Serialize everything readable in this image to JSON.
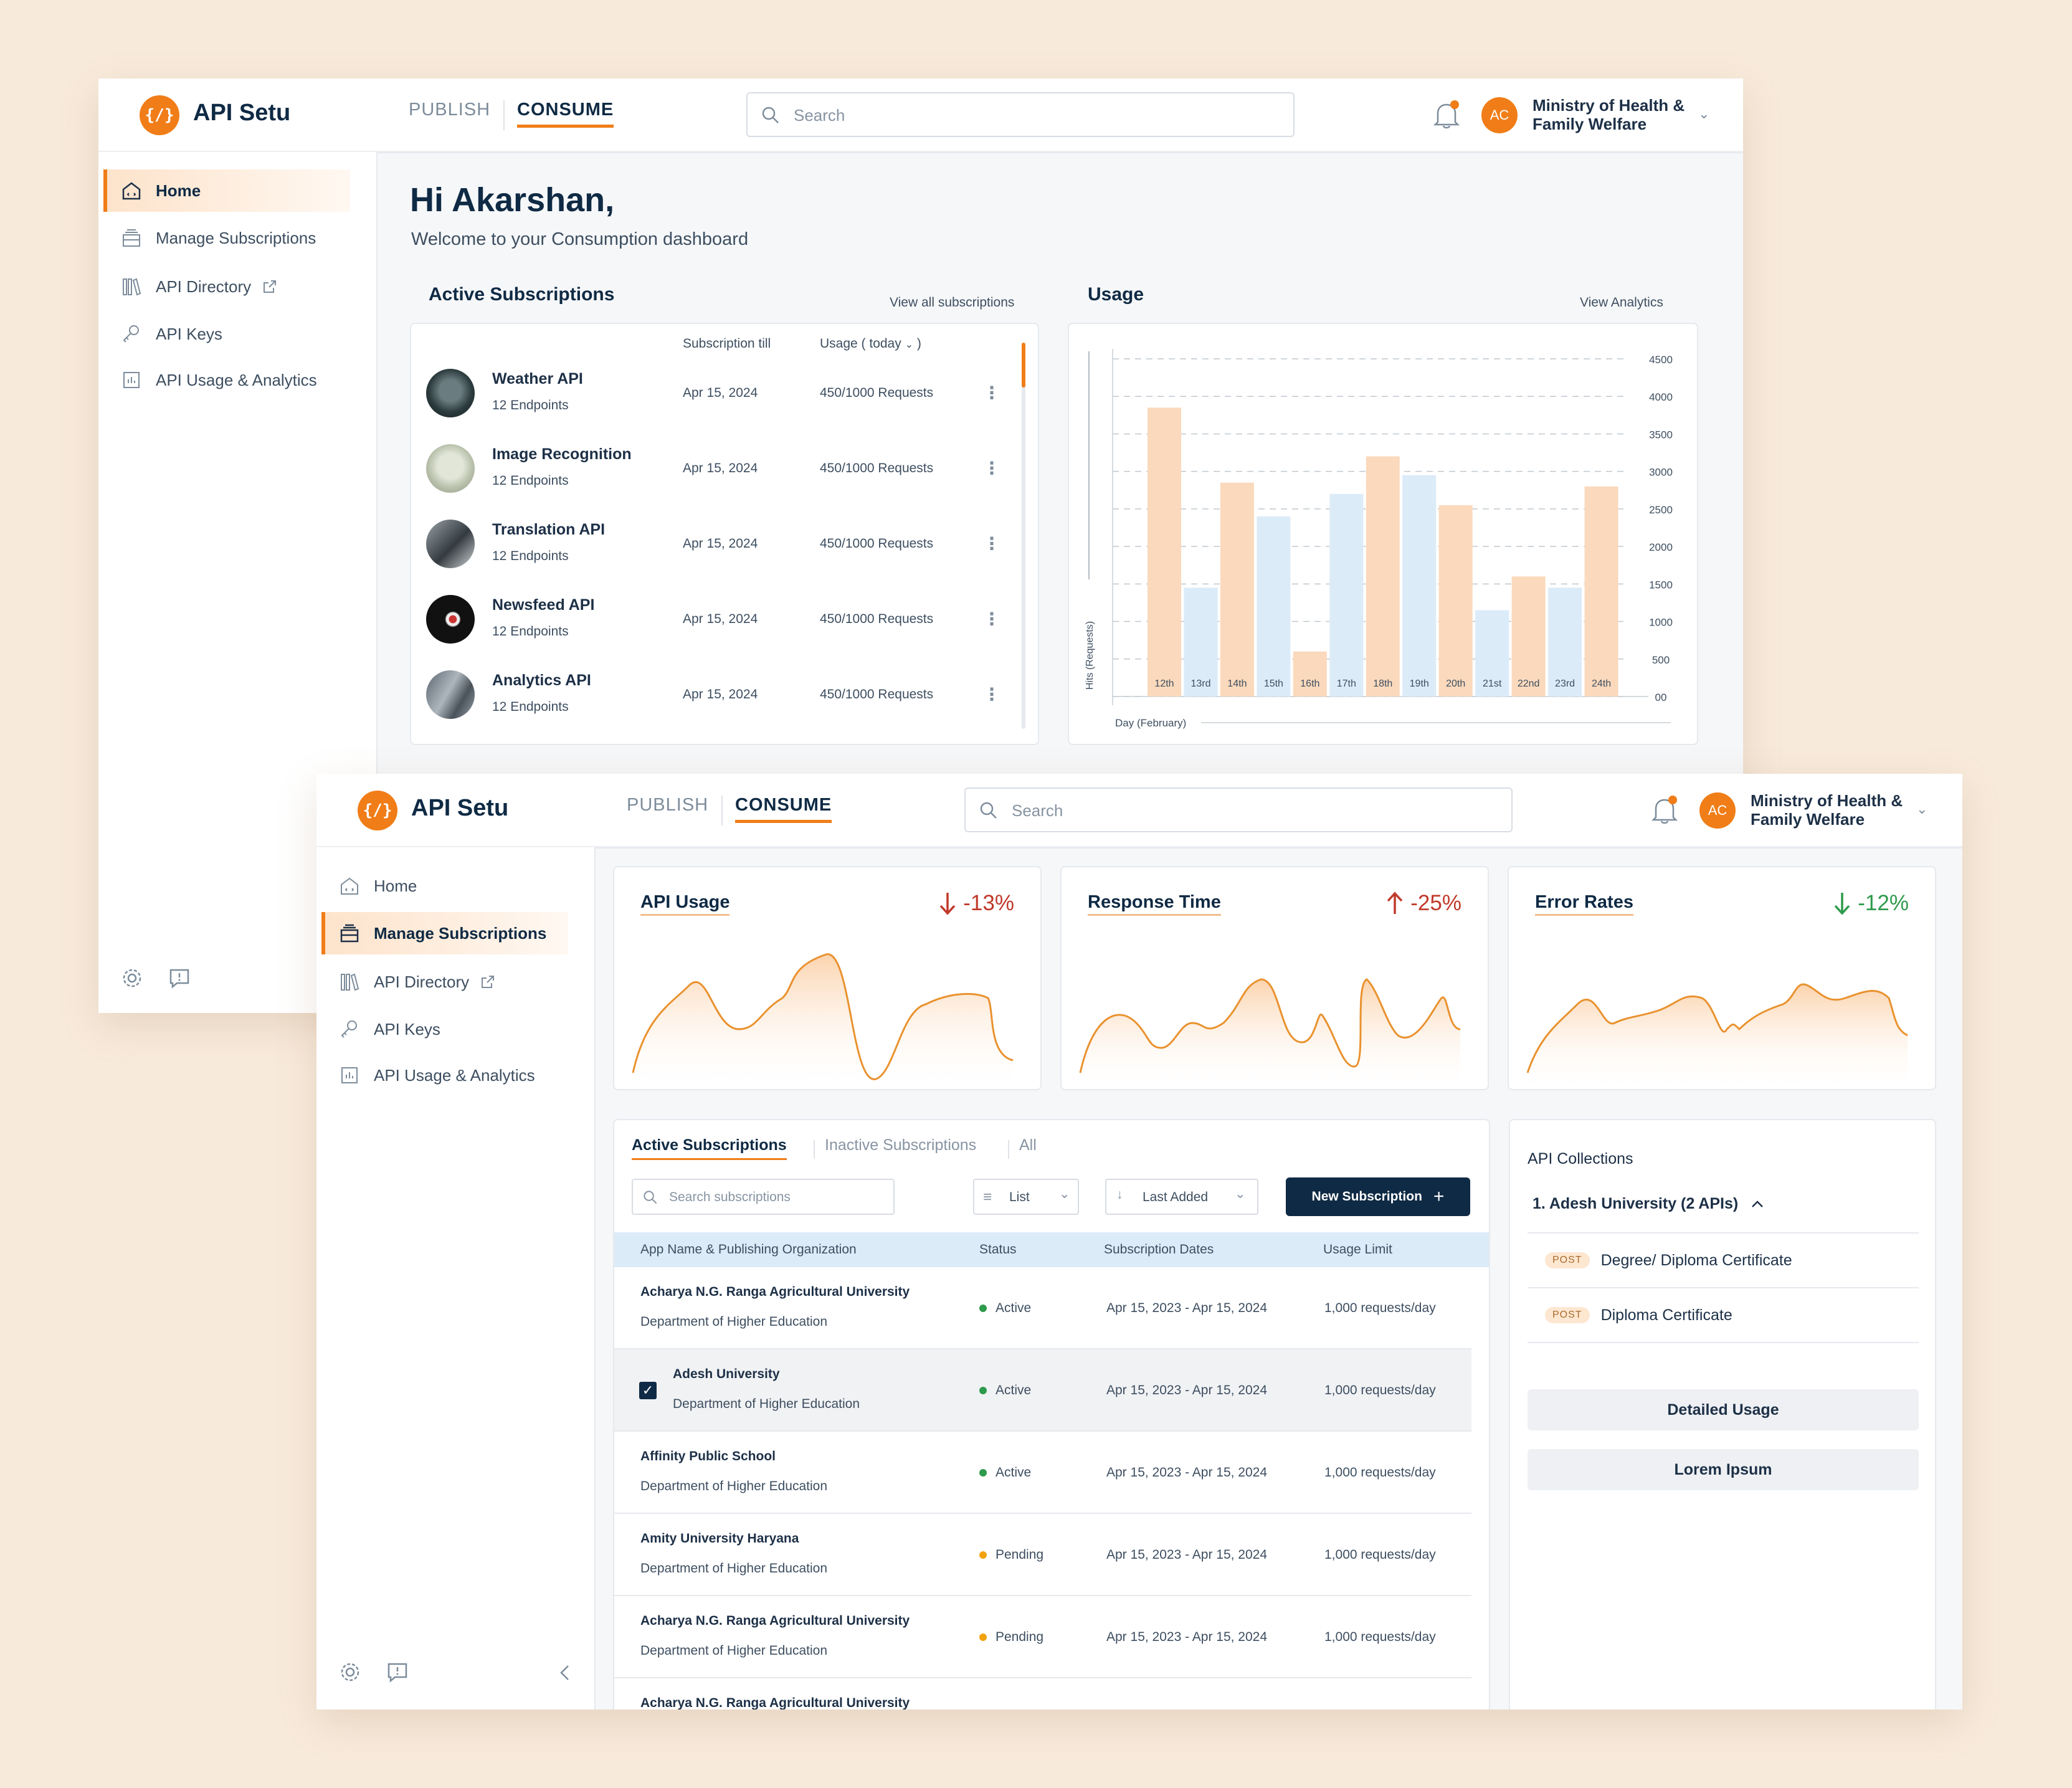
{
  "brand": {
    "name": "API Setu",
    "logo_glyph": "{/}",
    "accent": "#f07d18"
  },
  "topnav": {
    "publish": "PUBLISH",
    "consume": "CONSUME"
  },
  "search": {
    "placeholder": "Search"
  },
  "user": {
    "initials": "AC",
    "org_line1": "Ministry of Health &",
    "org_line2": "Family Welfare"
  },
  "sidebar": {
    "items": [
      {
        "label": "Home",
        "icon": "home-icon"
      },
      {
        "label": "Manage Subscriptions",
        "icon": "subscriptions-icon"
      },
      {
        "label": "API Directory",
        "icon": "library-icon"
      },
      {
        "label": "API Keys",
        "icon": "key-icon"
      },
      {
        "label": "API Usage & Analytics",
        "icon": "analytics-icon"
      }
    ]
  },
  "dashboard": {
    "greeting": "Hi Akarshan,",
    "subtitle": "Welcome to your Consumption dashboard",
    "active_subs": {
      "title": "Active Subscriptions",
      "view_all": "View all subscriptions",
      "col_till": "Subscription till",
      "col_usage": "Usage ( today ",
      "items": [
        {
          "name": "Weather API",
          "endpoints": "12 Endpoints",
          "till": "Apr 15, 2024",
          "usage": "450/1000 Requests"
        },
        {
          "name": "Image Recognition",
          "endpoints": "12 Endpoints",
          "till": "Apr 15, 2024",
          "usage": "450/1000 Requests"
        },
        {
          "name": "Translation API",
          "endpoints": "12 Endpoints",
          "till": "Apr 15, 2024",
          "usage": "450/1000 Requests"
        },
        {
          "name": "Newsfeed API",
          "endpoints": "12 Endpoints",
          "till": "Apr 15, 2024",
          "usage": "450/1000 Requests"
        },
        {
          "name": "Analytics API",
          "endpoints": "12 Endpoints",
          "till": "Apr 15, 2024",
          "usage": "450/1000 Requests"
        }
      ]
    },
    "usage": {
      "title": "Usage",
      "view": "View Analytics"
    }
  },
  "chart_data": {
    "type": "bar",
    "ylabel": "Hits (Requests)",
    "xlabel": "Day (February)",
    "ylim": [
      0,
      4500
    ],
    "yticks": [
      "00",
      "500",
      "1000",
      "1500",
      "2000",
      "2500",
      "3000",
      "3500",
      "4000",
      "4500"
    ],
    "categories": [
      "12th",
      "13rd",
      "14th",
      "15th",
      "16th",
      "17th",
      "18th",
      "19th",
      "20th",
      "21st",
      "22nd",
      "23rd",
      "24th"
    ],
    "values": [
      3850,
      1450,
      2850,
      2400,
      600,
      2700,
      3200,
      2950,
      2550,
      1150,
      1600,
      1450,
      2800
    ],
    "colors": [
      "#fbd9bc",
      "#dcebf8",
      "#fbd9bc",
      "#dcebf8",
      "#fbd9bc",
      "#dcebf8",
      "#fbd9bc",
      "#dcebf8",
      "#fbd9bc",
      "#dcebf8",
      "#fbd9bc",
      "#dcebf8",
      "#fbd9bc"
    ],
    "grid": true
  },
  "metrics": [
    {
      "title": "API Usage",
      "delta": "-13%",
      "dir": "down",
      "color": "#c0392b"
    },
    {
      "title": "Response Time",
      "delta": "-25%",
      "dir": "up",
      "color": "#c0392b"
    },
    {
      "title": "Error Rates",
      "delta": "-12%",
      "dir": "down",
      "color": "#2e9a4b"
    }
  ],
  "manage": {
    "tabs": [
      "Active Subscriptions",
      "Inactive Subscriptions",
      "All"
    ],
    "search_placeholder": "Search subscriptions",
    "view_select": "List",
    "sort_select": "Last Added",
    "new_btn": "New Subscription",
    "columns": [
      "App Name & Publishing Organization",
      "Status",
      "Subscription Dates",
      "Usage Limit"
    ],
    "rows": [
      {
        "app": "Acharya N.G. Ranga Agricultural University",
        "org": "Department of Higher Education",
        "status": "Active",
        "status_color": "#2e9a4b",
        "dates": "Apr 15, 2023 - Apr 15, 2024",
        "limit": "1,000 requests/day"
      },
      {
        "app": "Adesh University",
        "org": "Department of Higher Education",
        "status": "Active",
        "status_color": "#2e9a4b",
        "dates": "Apr 15, 2023 - Apr 15, 2024",
        "limit": "1,000 requests/day"
      },
      {
        "app": "Affinity Public School",
        "org": "Department of Higher Education",
        "status": "Active",
        "status_color": "#2e9a4b",
        "dates": "Apr 15, 2023 - Apr 15, 2024",
        "limit": "1,000 requests/day"
      },
      {
        "app": "Amity University Haryana",
        "org": "Department of Higher Education",
        "status": "Pending",
        "status_color": "#f2a20f",
        "dates": "Apr 15, 2023 - Apr 15, 2024",
        "limit": "1,000 requests/day"
      },
      {
        "app": "Acharya N.G. Ranga Agricultural University",
        "org": "Department of Higher Education",
        "status": "Pending",
        "status_color": "#f2a20f",
        "dates": "Apr 15, 2023 - Apr 15, 2024",
        "limit": "1,000 requests/day"
      },
      {
        "app": "Acharya N.G. Ranga Agricultural University",
        "org": "",
        "status": "",
        "status_color": "#2e9a4b",
        "dates": "",
        "limit": ""
      }
    ],
    "collections": {
      "title": "API Collections",
      "group": "1. Adesh University (2 APIs)",
      "items": [
        {
          "method": "POST",
          "name": "Degree/ Diploma Certificate"
        },
        {
          "method": "POST",
          "name": "Diploma Certificate"
        }
      ],
      "btn1": "Detailed Usage",
      "btn2": "Lorem Ipsum"
    }
  }
}
